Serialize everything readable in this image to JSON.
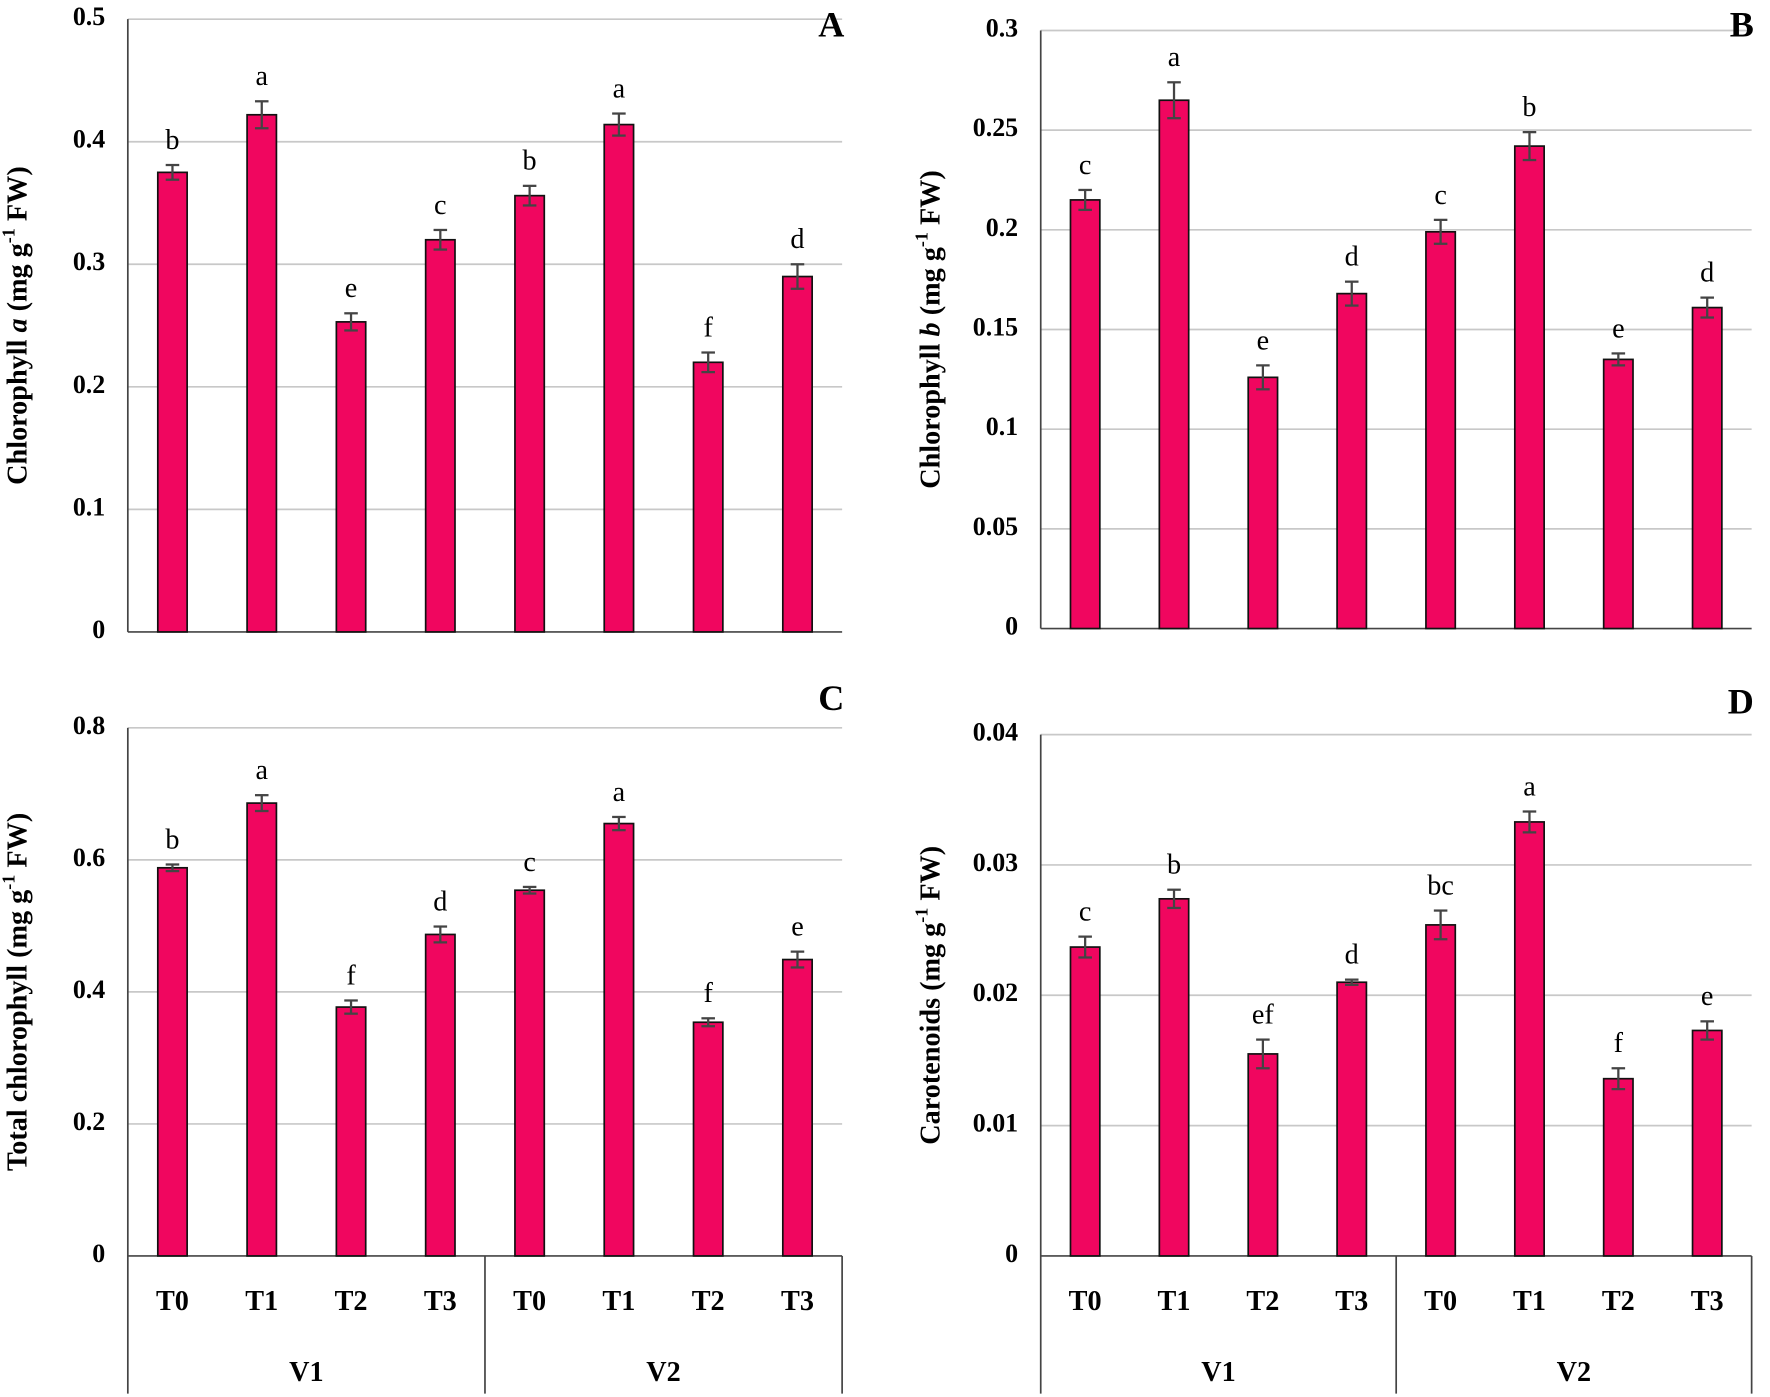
{
  "chart_data": [
    {
      "type": "bar",
      "panel": "A",
      "ylabel": [
        {
          "text": "Chlorophyll "
        },
        {
          "text": "a",
          "style": "italic"
        },
        {
          "text": " (mg g"
        },
        {
          "text": "-1",
          "style": "sup"
        },
        {
          "text": " FW)"
        }
      ],
      "values": [
        0.375,
        0.422,
        0.253,
        0.32,
        0.356,
        0.414,
        0.22,
        0.29
      ],
      "errors": [
        0.006,
        0.011,
        0.007,
        0.008,
        0.008,
        0.009,
        0.008,
        0.01
      ],
      "letters": [
        "b",
        "a",
        "e",
        "c",
        "b",
        "a",
        "f",
        "d"
      ],
      "color": "#f0065f",
      "ylim": [
        0,
        0.5
      ],
      "yticks": [
        0,
        0.1,
        0.2,
        0.3,
        0.4,
        0.5
      ],
      "grid": true
    },
    {
      "type": "bar",
      "panel": "B",
      "ylabel": [
        {
          "text": "Chlorophyll  "
        },
        {
          "text": "b",
          "style": "italic"
        },
        {
          "text": " (mg g"
        },
        {
          "text": "-1",
          "style": "sup"
        },
        {
          "text": " FW)"
        }
      ],
      "values": [
        0.215,
        0.265,
        0.126,
        0.168,
        0.199,
        0.242,
        0.135,
        0.161
      ],
      "errors": [
        0.005,
        0.009,
        0.006,
        0.006,
        0.006,
        0.007,
        0.003,
        0.005
      ],
      "letters": [
        "c",
        "a",
        "e",
        "d",
        "c",
        "b",
        "e",
        "d"
      ],
      "color": "#f0065f",
      "ylim": [
        0,
        0.3
      ],
      "yticks": [
        0,
        0.05,
        0.1,
        0.15,
        0.2,
        0.25,
        0.3
      ],
      "grid": true
    },
    {
      "type": "bar",
      "panel": "C",
      "ylabel": [
        {
          "text": "Total chlorophyll  (mg g"
        },
        {
          "text": "-1",
          "style": "sup"
        },
        {
          "text": " FW)"
        }
      ],
      "categories": [
        "T0",
        "T1",
        "T2",
        "T3",
        "T0",
        "T1",
        "T2",
        "T3"
      ],
      "groups": [
        "V1",
        "V2"
      ],
      "values": [
        0.588,
        0.686,
        0.377,
        0.487,
        0.554,
        0.655,
        0.354,
        0.449
      ],
      "errors": [
        0.005,
        0.012,
        0.01,
        0.012,
        0.005,
        0.01,
        0.006,
        0.012
      ],
      "letters": [
        "b",
        "a",
        "f",
        "d",
        "c",
        "a",
        "f",
        "e"
      ],
      "color": "#f0065f",
      "ylim": [
        0,
        0.8
      ],
      "yticks": [
        0,
        0.2,
        0.4,
        0.6,
        0.8
      ],
      "grid": true
    },
    {
      "type": "bar",
      "panel": "D",
      "ylabel": [
        {
          "text": "Carotenoids (mg g"
        },
        {
          "text": "-1",
          "style": "sup"
        },
        {
          "text": " FW)"
        }
      ],
      "categories": [
        "T0",
        "T1",
        "T2",
        "T3",
        "T0",
        "T1",
        "T2",
        "T3"
      ],
      "groups": [
        "V1",
        "V2"
      ],
      "values": [
        0.0237,
        0.0274,
        0.0155,
        0.021,
        0.0254,
        0.0333,
        0.0136,
        0.0173
      ],
      "errors": [
        0.0008,
        0.0007,
        0.0011,
        0.0002,
        0.0011,
        0.0008,
        0.0008,
        0.0007
      ],
      "letters": [
        "c",
        "b",
        "ef",
        "d",
        "bc",
        "a",
        "f",
        "e"
      ],
      "color": "#f0065f",
      "ylim": [
        0,
        0.04
      ],
      "yticks": [
        0,
        0.01,
        0.02,
        0.03,
        0.04
      ],
      "grid": true
    }
  ]
}
